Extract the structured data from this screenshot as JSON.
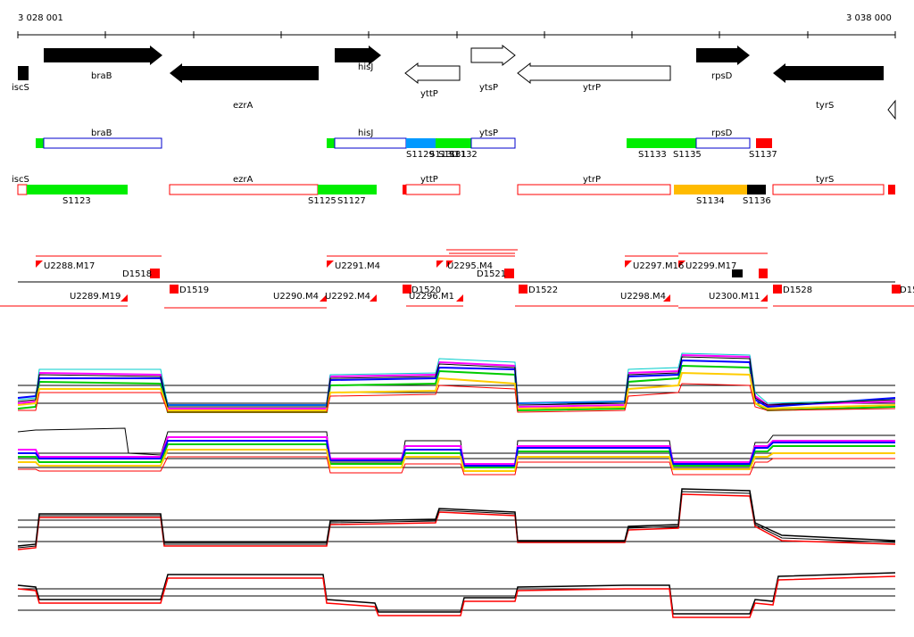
{
  "coords": {
    "start": "3 028 001",
    "end": "3 038 000"
  },
  "genes": [
    {
      "name": "iscS",
      "strand": "+"
    },
    {
      "name": "braB",
      "strand": "+"
    },
    {
      "name": "ezrA",
      "strand": "-"
    },
    {
      "name": "hisJ",
      "strand": "+"
    },
    {
      "name": "yttP",
      "strand": "-"
    },
    {
      "name": "ytsP",
      "strand": "+"
    },
    {
      "name": "ytrP",
      "strand": "-"
    },
    {
      "name": "rpsD",
      "strand": "+"
    },
    {
      "name": "tyrS",
      "strand": "-"
    }
  ],
  "segments_plus": [
    "S1129",
    "S1130",
    "S1131",
    "S1132",
    "S1133",
    "S1135",
    "S1137"
  ],
  "segments_minus": [
    "S1123",
    "S1125",
    "S1127",
    "S1134",
    "S1136"
  ],
  "upshifts": [
    "U2288.M17",
    "U2289.M19",
    "U2290.M4",
    "U2291.M4",
    "U2292.M4",
    "U2296.M1",
    "U2297.M16",
    "U2298.M4",
    "U2299.M17",
    "U2300.M11",
    "U2295.M4"
  ],
  "downshifts": [
    "D1518",
    "D1519",
    "D1520",
    "D1521",
    "D1522",
    "D1528",
    "D15"
  ],
  "colors": {
    "green": "#00ee00",
    "blue": "#0099ff",
    "orange": "#ffbb00",
    "red": "#ff0000",
    "outline_blue": "#0000cc"
  }
}
